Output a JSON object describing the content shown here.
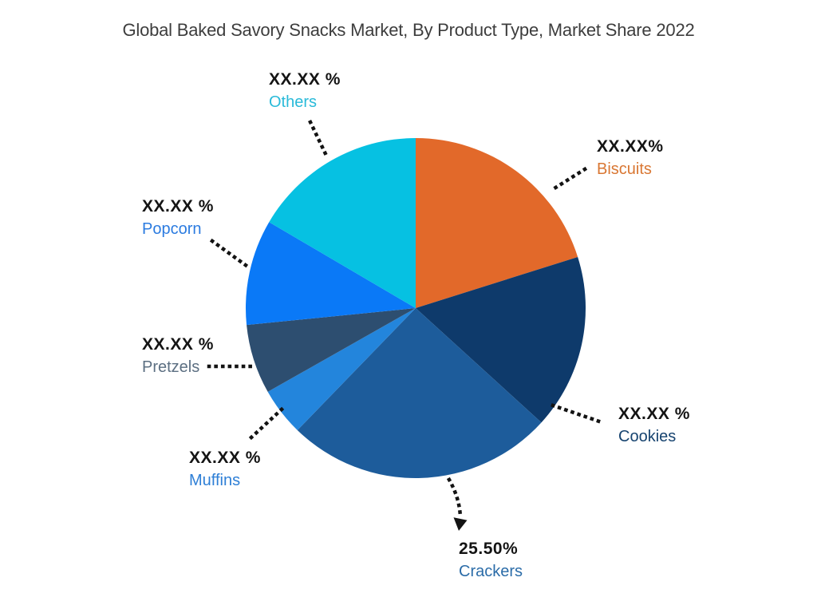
{
  "chart_data": {
    "type": "pie",
    "title": "Global Baked Savory Snacks Market, By Product Type, Market Share 2022",
    "legend_position": "none",
    "value_labels_masked": true,
    "slices": [
      {
        "name": "Biscuits",
        "display_value": "XX.XX%",
        "share_pct_est": 20.1,
        "start_deg": 0,
        "end_deg": 72.5,
        "color": "#E2692A",
        "label_color": "#D97733"
      },
      {
        "name": "Cookies",
        "display_value": "XX.XX %",
        "share_pct_est": 16.6,
        "start_deg": 72.5,
        "end_deg": 132.3,
        "color": "#0E3A6B",
        "label_color": "#16436F"
      },
      {
        "name": "Crackers",
        "display_value": "25.50%",
        "share_pct_est": 25.5,
        "start_deg": 132.3,
        "end_deg": 224.1,
        "color": "#1D5C9B",
        "label_color": "#2B6CA8"
      },
      {
        "name": "Muffins",
        "display_value": "XX.XX %",
        "share_pct_est": 4.6,
        "start_deg": 224.1,
        "end_deg": 240.5,
        "color": "#2385DC",
        "label_color": "#2E7FD6"
      },
      {
        "name": "Pretzels",
        "display_value": "XX.XX %",
        "share_pct_est": 6.6,
        "start_deg": 240.5,
        "end_deg": 264.3,
        "color": "#2D4E70",
        "label_color": "#5C6F82"
      },
      {
        "name": "Popcorn",
        "display_value": "XX.XX %",
        "share_pct_est": 10.0,
        "start_deg": 264.3,
        "end_deg": 300.4,
        "color": "#0A79F7",
        "label_color": "#2B7BE0"
      },
      {
        "name": "Others",
        "display_value": "XX.XX %",
        "share_pct_est": 16.6,
        "start_deg": 300.4,
        "end_deg": 360,
        "color": "#06C1E2",
        "label_color": "#29BAD9"
      }
    ]
  }
}
